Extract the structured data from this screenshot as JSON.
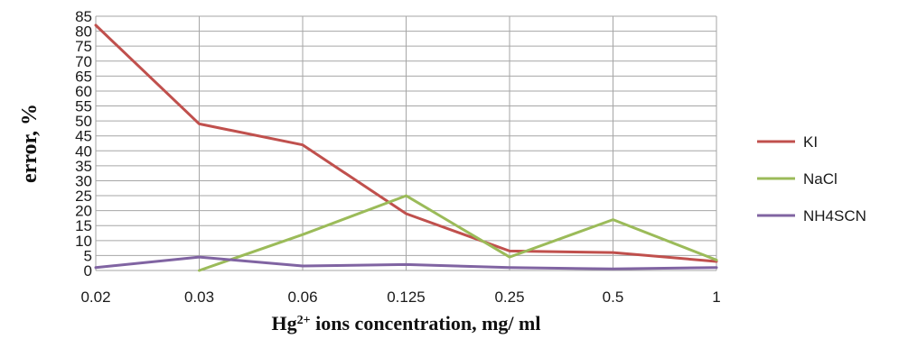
{
  "chart_data": {
    "type": "line",
    "categories": [
      "0.02",
      "0.03",
      "0.06",
      "0.125",
      "0.25",
      "0.5",
      "1"
    ],
    "ylim": [
      0,
      85
    ],
    "yticks": [
      0,
      5,
      10,
      15,
      20,
      25,
      30,
      35,
      40,
      45,
      50,
      55,
      60,
      65,
      70,
      75,
      80,
      85
    ],
    "ylabel": "error, %",
    "xlabel": {
      "prefix": "Hg",
      "superscript": "2+",
      "suffix": " ions concentration, mg/ ml"
    },
    "grid": true,
    "legend_position": "right",
    "series": [
      {
        "name": "KI",
        "color": "#c0504d",
        "values": [
          82,
          49,
          42,
          19,
          6.5,
          6,
          3
        ]
      },
      {
        "name": "NaCl",
        "color": "#9bbb59",
        "values": [
          null,
          0,
          12,
          25,
          4.5,
          17,
          3.5
        ]
      },
      {
        "name": "NH4SCN",
        "color": "#8064a2",
        "values": [
          1,
          4.5,
          1.5,
          2,
          1,
          0.5,
          1
        ]
      }
    ]
  }
}
